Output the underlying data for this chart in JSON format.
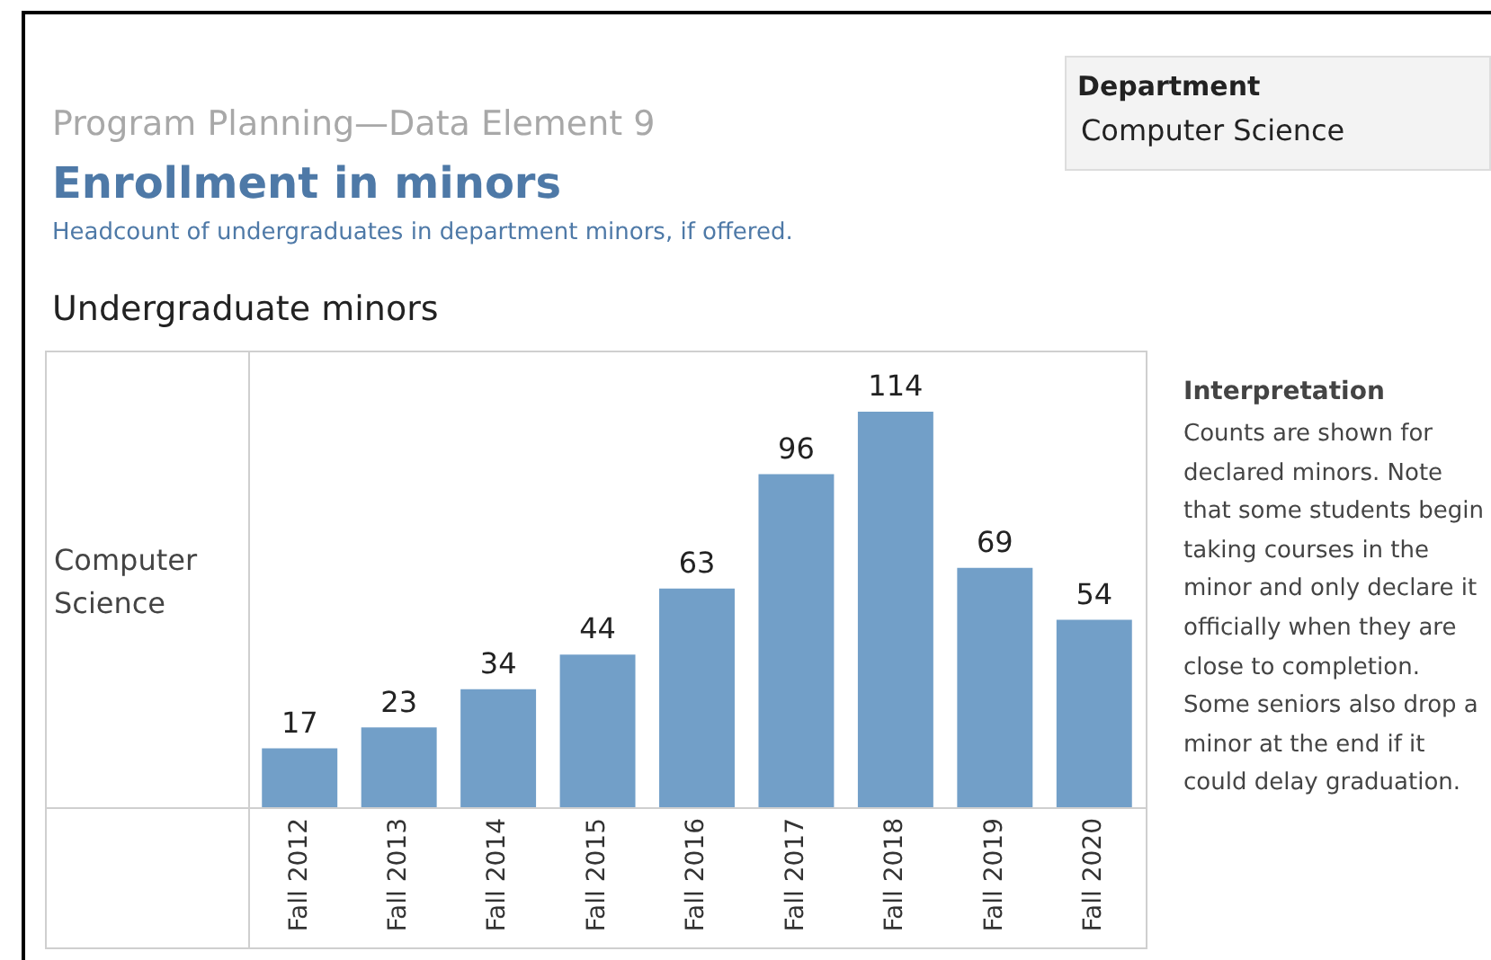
{
  "chart_data": {
    "type": "bar",
    "title": "Enrollment in minors",
    "subtitle": "Headcount of undergraduates in department minors, if offered.",
    "ylabel": "Computer Science",
    "categories": [
      "Fall 2012",
      "Fall 2013",
      "Fall 2014",
      "Fall 2015",
      "Fall 2016",
      "Fall 2017",
      "Fall 2018",
      "Fall 2019",
      "Fall 2020"
    ],
    "values": [
      17,
      23,
      34,
      44,
      63,
      96,
      114,
      69,
      54
    ],
    "color": "#729fc8",
    "data_labels": true,
    "annotations": [
      "Program Planning—Data Element 9",
      "Undergraduate minors",
      "Department",
      "Computer Science",
      "Interpretation",
      "Counts are shown for declared minors. Note that some students begin taking courses in the minor and only declare it officially when they are close to completion. Some seniors also drop a minor at the end if it could delay graduation."
    ]
  }
}
